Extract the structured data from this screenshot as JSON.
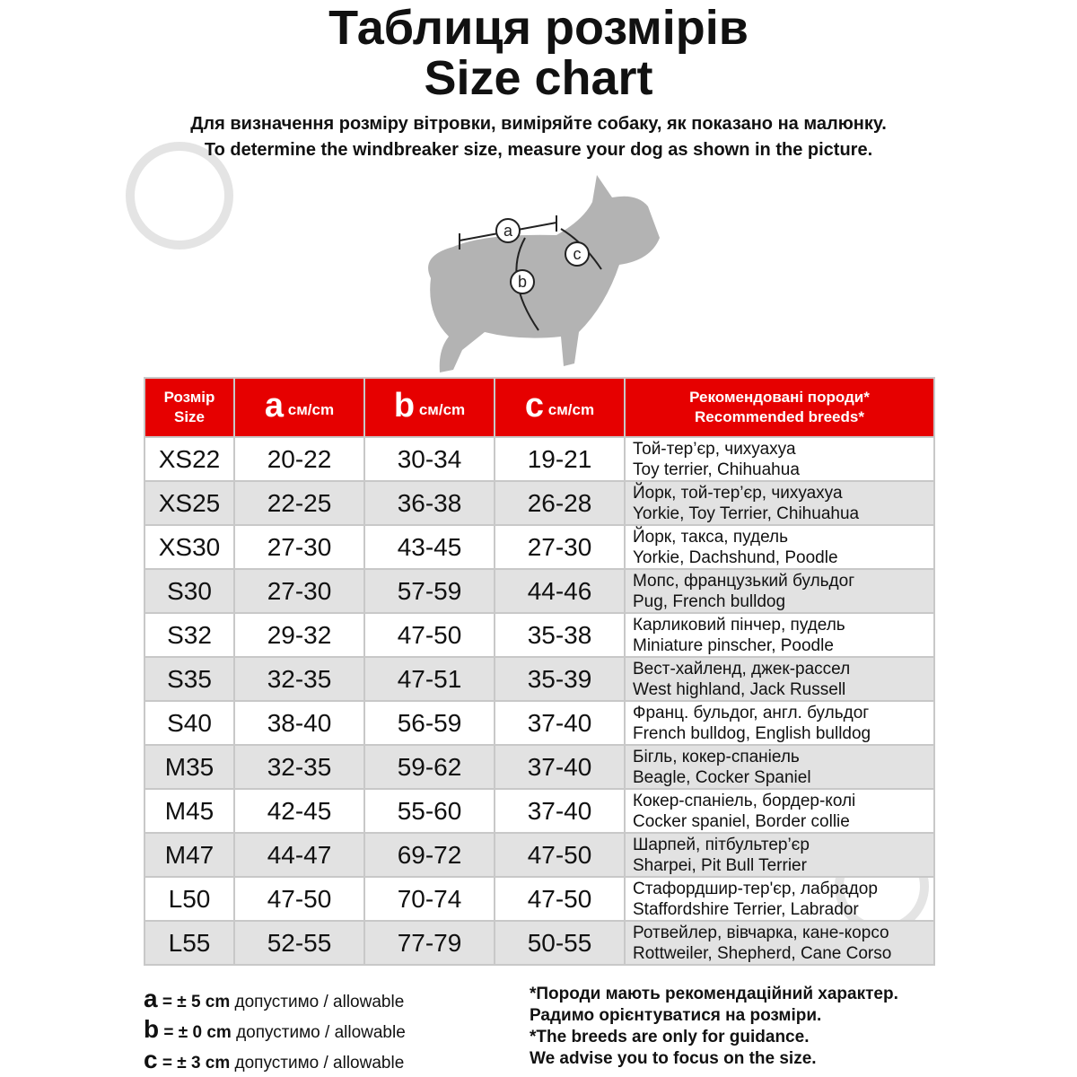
{
  "title_ua": "Таблиця розмірів",
  "title_en": "Size chart",
  "subtitle_ua": "Для визначення розміру вітровки, виміряйте собаку, як показано на малюнку.",
  "subtitle_en": "To determine the windbreaker size, measure your dog as shown in the picture.",
  "diagram": {
    "labels": [
      "a",
      "b",
      "c"
    ]
  },
  "table": {
    "header": {
      "size": "Розмір",
      "size_en": "Size",
      "a": "a",
      "b": "b",
      "c": "c",
      "unit": "см/cm",
      "breeds": "Рекомендовані породи*",
      "breeds_en": "Recommended breeds*"
    },
    "rows": [
      {
        "size": "XS22",
        "a": "20-22",
        "b": "30-34",
        "c": "19-21",
        "ua": "Той-тер’єр, чихуахуа",
        "en": "Toy terrier, Chihuahua"
      },
      {
        "size": "XS25",
        "a": "22-25",
        "b": "36-38",
        "c": "26-28",
        "ua": "Йорк, той-тер’єр, чихуахуа",
        "en": "Yorkie, Toy Terrier, Chihuahua"
      },
      {
        "size": "XS30",
        "a": "27-30",
        "b": "43-45",
        "c": "27-30",
        "ua": "Йорк, такса, пудель",
        "en": "Yorkie, Dachshund, Poodle"
      },
      {
        "size": "S30",
        "a": "27-30",
        "b": "57-59",
        "c": "44-46",
        "ua": "Мопс, французький бульдог",
        "en": "Pug, French bulldog"
      },
      {
        "size": "S32",
        "a": "29-32",
        "b": "47-50",
        "c": "35-38",
        "ua": "Карликовий пінчер, пудель",
        "en": "Miniature pinscher, Poodle"
      },
      {
        "size": "S35",
        "a": "32-35",
        "b": "47-51",
        "c": "35-39",
        "ua": "Вест-хайленд, джек-рассел",
        "en": "West highland, Jack Russell"
      },
      {
        "size": "S40",
        "a": "38-40",
        "b": "56-59",
        "c": "37-40",
        "ua": "Франц. бульдог, англ. бульдог",
        "en": "French bulldog, English bulldog"
      },
      {
        "size": "M35",
        "a": "32-35",
        "b": "59-62",
        "c": "37-40",
        "ua": "Бігль, кокер-спаніель",
        "en": "Beagle, Cocker Spaniel"
      },
      {
        "size": "M45",
        "a": "42-45",
        "b": "55-60",
        "c": "37-40",
        "ua": "Кокер-спаніель, бордер-колі",
        "en": "Cocker spaniel, Border collie"
      },
      {
        "size": "M47",
        "a": "44-47",
        "b": "69-72",
        "c": "47-50",
        "ua": "Шарпей, пітбультер’єр",
        "en": "Sharpei, Pit Bull Terrier"
      },
      {
        "size": "L50",
        "a": "47-50",
        "b": "70-74",
        "c": "47-50",
        "ua": "Стафордшир-тер'єр, лабрадор",
        "en": "Staffordshire Terrier, Labrador"
      },
      {
        "size": "L55",
        "a": "52-55",
        "b": "77-79",
        "c": "50-55",
        "ua": "Ротвейлер, вівчарка, кане-корсо",
        "en": "Rottweiler, Shepherd, Cane Corso"
      }
    ]
  },
  "tolerances": [
    {
      "letter": "a",
      "value": "= ± 5 cm",
      "text": "допустимо / allowable"
    },
    {
      "letter": "b",
      "value": "= ± 0 cm",
      "text": "допустимо / allowable"
    },
    {
      "letter": "c",
      "value": "= ± 3 cm",
      "text": "допустимо / allowable"
    }
  ],
  "footnote": [
    "*Породи мають рекомендаційний характер.",
    "Радимо орієнтуватися на розміри.",
    "*The breeds are only for guidance.",
    "We advise you to focus on the size."
  ],
  "colors": {
    "header_red": "#e60000",
    "row_gray": "#e2e2e2",
    "dog_gray": "#b3b3b3"
  }
}
